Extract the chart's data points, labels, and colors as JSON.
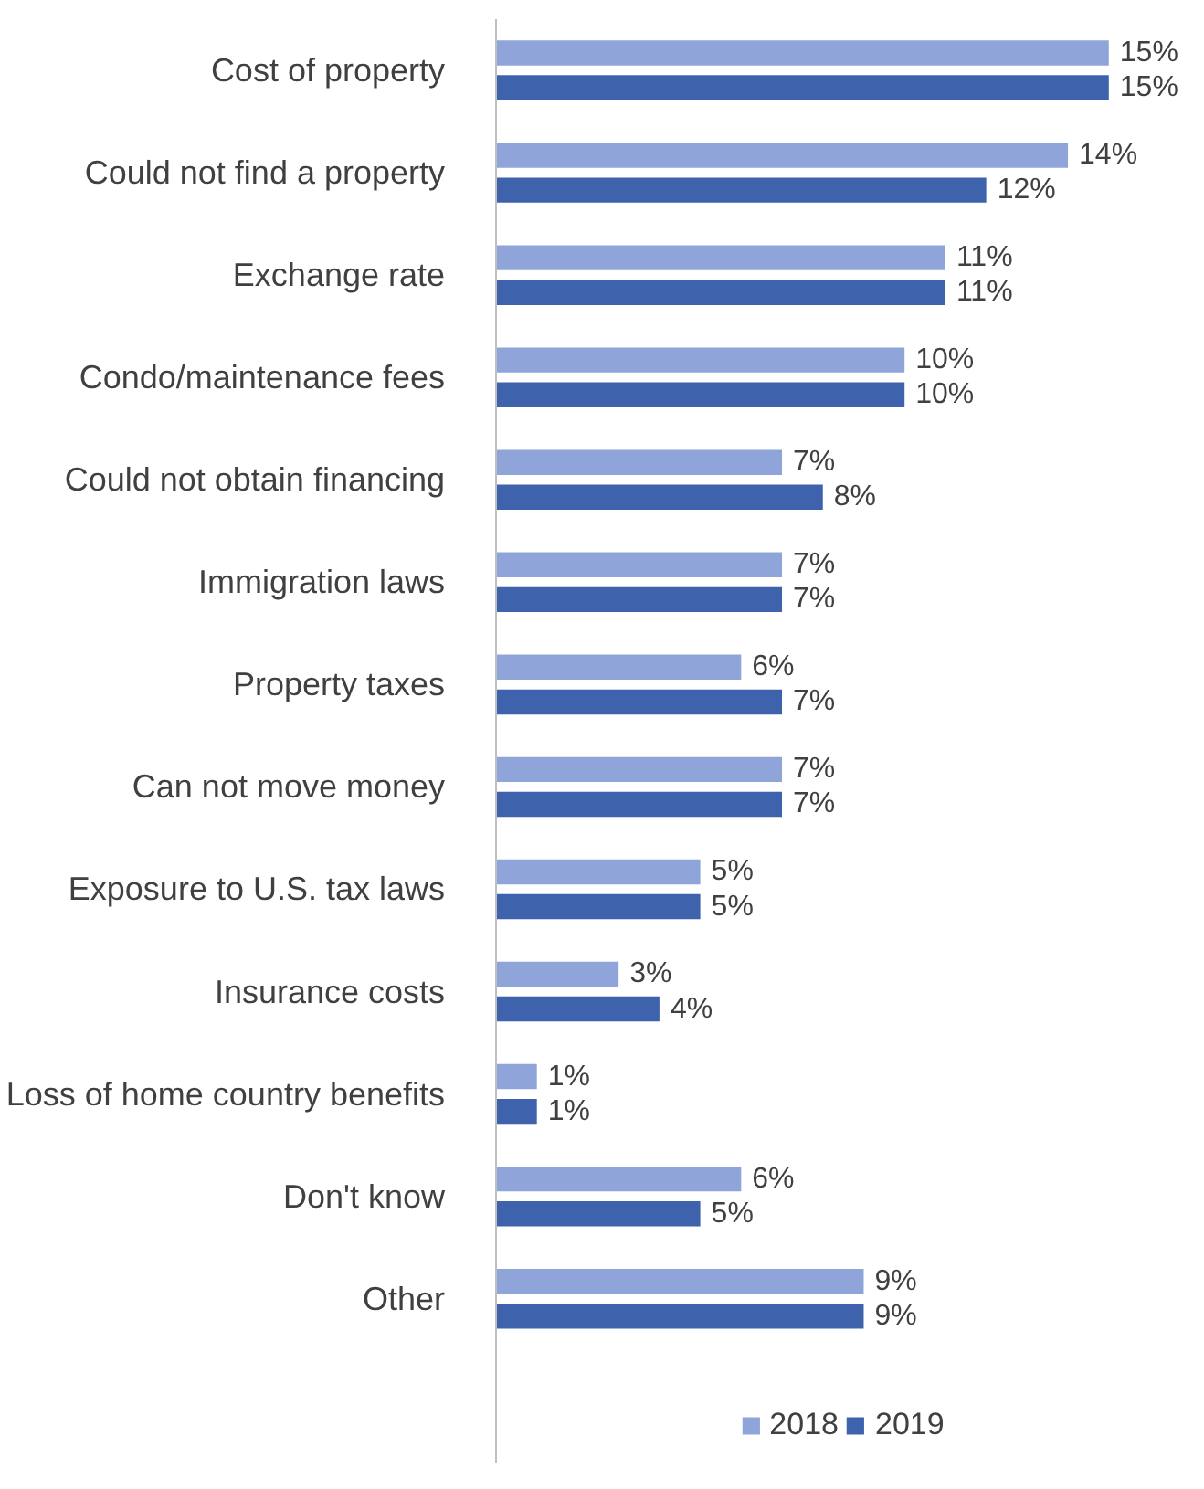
{
  "chart_data": {
    "type": "bar",
    "orientation": "horizontal",
    "categories": [
      "Cost of property",
      "Could not find a property",
      "Exchange rate",
      "Condo/maintenance fees",
      "Could not obtain financing",
      "Immigration laws",
      "Property taxes",
      "Can not move money",
      "Exposure to U.S. tax laws",
      "Insurance costs",
      "Loss of home country benefits",
      "Don't know",
      "Other"
    ],
    "series": [
      {
        "name": "2018",
        "color": "#8fa5d9",
        "values": [
          15,
          14,
          11,
          10,
          7,
          7,
          6,
          7,
          5,
          3,
          1,
          6,
          9
        ],
        "value_labels": [
          "15%",
          "14%",
          "11%",
          "10%",
          "7%",
          "7%",
          "6%",
          "7%",
          "5%",
          "3%",
          "1%",
          "6%",
          "9%"
        ]
      },
      {
        "name": "2019",
        "color": "#3f62ad",
        "values": [
          15,
          12,
          11,
          10,
          8,
          7,
          7,
          7,
          5,
          4,
          1,
          5,
          9
        ],
        "value_labels": [
          "15%",
          "12%",
          "11%",
          "10%",
          "8%",
          "7%",
          "7%",
          "7%",
          "5%",
          "4%",
          "1%",
          "5%",
          "9%"
        ]
      }
    ],
    "relative": false,
    "legend": "bottom",
    "grid": false
  }
}
